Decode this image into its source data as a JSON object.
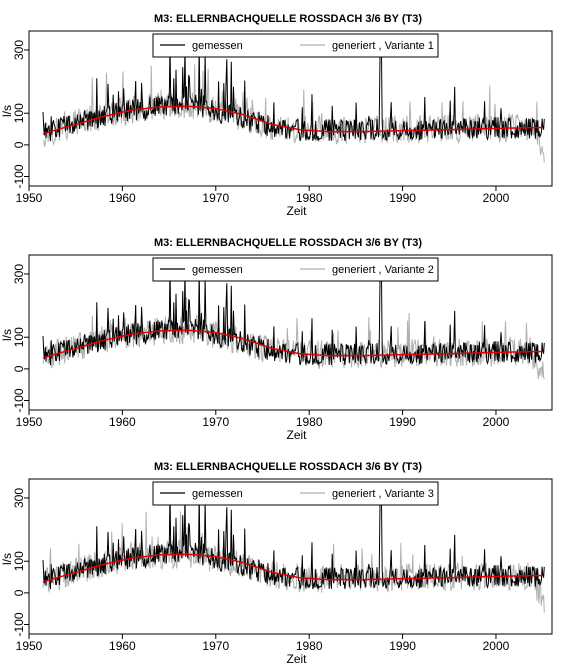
{
  "chart_data": [
    {
      "type": "line",
      "title": "M3: ELLERNBACHQUELLE ROSSDACH 3/6 BY (T3)",
      "xlabel": "Zeit",
      "ylabel": "l/s",
      "xlim": [
        1950,
        2006
      ],
      "ylim": [
        -130,
        360
      ],
      "x_ticks": [
        1950,
        1960,
        1970,
        1980,
        1990,
        2000
      ],
      "y_ticks": [
        -100,
        0,
        100,
        300
      ],
      "grid": false,
      "legend_position": "top-center",
      "series": [
        {
          "name": "gemessen",
          "color": "#000000"
        },
        {
          "name": "generiert , Variante 1",
          "color": "#b0b0b0"
        },
        {
          "name": "",
          "color": "#e00000",
          "x": [
            1951.5,
            1955,
            1958,
            1961,
            1964,
            1967,
            1970,
            1973,
            1976,
            1979,
            1982,
            1986,
            1990,
            1995,
            2000,
            2005
          ],
          "y": [
            35,
            65,
            90,
            110,
            120,
            122,
            115,
            95,
            65,
            48,
            42,
            42,
            45,
            48,
            52,
            55
          ]
        }
      ]
    },
    {
      "type": "line",
      "title": "M3: ELLERNBACHQUELLE ROSSDACH 3/6 BY (T3)",
      "xlabel": "Zeit",
      "ylabel": "l/s",
      "xlim": [
        1950,
        2006
      ],
      "ylim": [
        -130,
        360
      ],
      "x_ticks": [
        1950,
        1960,
        1970,
        1980,
        1990,
        2000
      ],
      "y_ticks": [
        -100,
        0,
        100,
        300
      ],
      "grid": false,
      "legend_position": "top-center",
      "series": [
        {
          "name": "gemessen",
          "color": "#000000"
        },
        {
          "name": "generiert , Variante 2",
          "color": "#b0b0b0"
        },
        {
          "name": "",
          "color": "#e00000",
          "x": [
            1951.5,
            1955,
            1958,
            1961,
            1964,
            1967,
            1970,
            1973,
            1976,
            1979,
            1982,
            1986,
            1990,
            1995,
            2000,
            2005
          ],
          "y": [
            35,
            65,
            90,
            110,
            120,
            122,
            115,
            95,
            65,
            48,
            42,
            42,
            45,
            48,
            52,
            55
          ]
        }
      ]
    },
    {
      "type": "line",
      "title": "M3: ELLERNBACHQUELLE ROSSDACH 3/6 BY (T3)",
      "xlabel": "Zeit",
      "ylabel": "l/s",
      "xlim": [
        1950,
        2006
      ],
      "ylim": [
        -130,
        360
      ],
      "x_ticks": [
        1950,
        1960,
        1970,
        1980,
        1990,
        2000
      ],
      "y_ticks": [
        -100,
        0,
        100,
        300
      ],
      "grid": false,
      "legend_position": "top-center",
      "series": [
        {
          "name": "gemessen",
          "color": "#000000"
        },
        {
          "name": "generiert , Variante 3",
          "color": "#b0b0b0"
        },
        {
          "name": "",
          "color": "#e00000",
          "x": [
            1951.5,
            1955,
            1958,
            1961,
            1964,
            1967,
            1970,
            1973,
            1976,
            1979,
            1982,
            1986,
            1990,
            1995,
            2000,
            2005
          ],
          "y": [
            35,
            65,
            90,
            110,
            120,
            122,
            115,
            95,
            65,
            48,
            42,
            42,
            45,
            48,
            52,
            55
          ]
        }
      ]
    }
  ]
}
